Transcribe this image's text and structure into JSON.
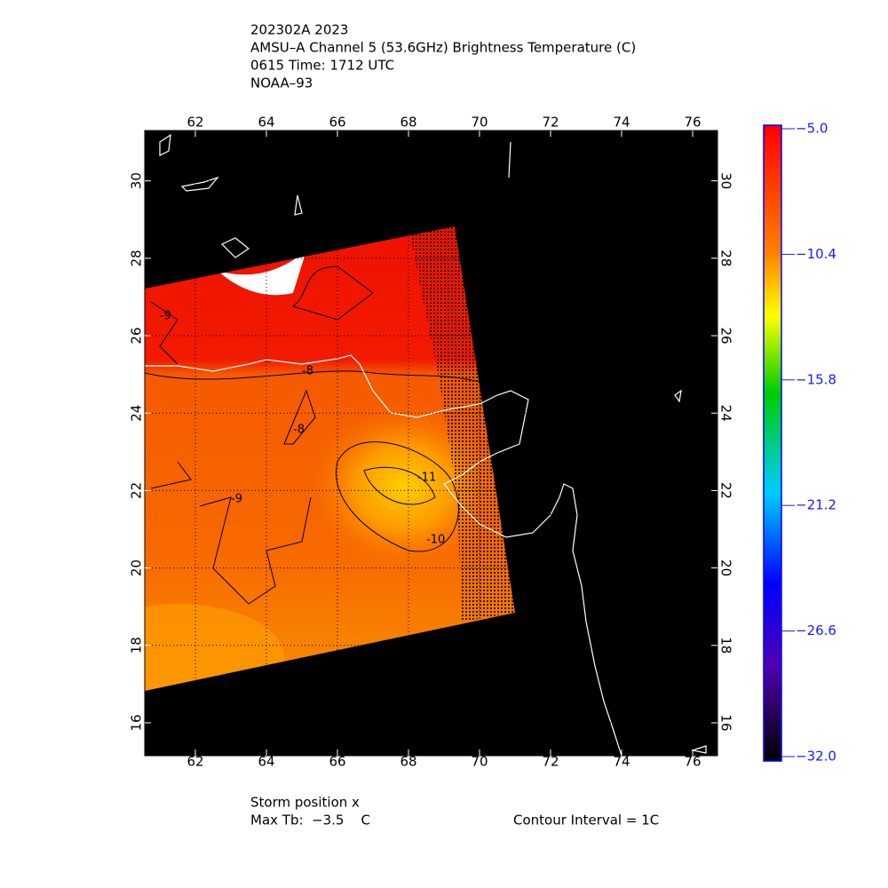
{
  "header": {
    "lines": [
      "202302A 2023",
      "AMSU–A Channel 5 (53.6GHz) Brightness Temperature (C)",
      "0615 Time: 1712 UTC",
      "NOAA–93"
    ]
  },
  "map": {
    "xlim": [
      60.575,
      76.7
    ],
    "ylim": [
      15.15,
      31.3
    ],
    "xticks": [
      62,
      64,
      66,
      68,
      70,
      72,
      74,
      76
    ],
    "yticks": [
      16,
      18,
      20,
      22,
      24,
      26,
      28,
      30
    ],
    "contour_labels": [
      -9,
      -8,
      -8,
      -9,
      -11,
      -10
    ]
  },
  "colorbar": {
    "lim": [
      -32,
      -5
    ],
    "ticks": [
      {
        "value": -5,
        "label": "−5.0"
      },
      {
        "value": -10.4,
        "label": "−10.4"
      },
      {
        "value": -15.8,
        "label": "−15.8"
      },
      {
        "value": -21.2,
        "label": "−21.2"
      },
      {
        "value": -26.6,
        "label": "−26.6"
      },
      {
        "value": -32,
        "label": "−32.0"
      }
    ]
  },
  "footer": {
    "storm": "Storm position x",
    "max_tb": "Max Tb:  −3.5    C",
    "interval": "Contour Interval = 1C"
  }
}
